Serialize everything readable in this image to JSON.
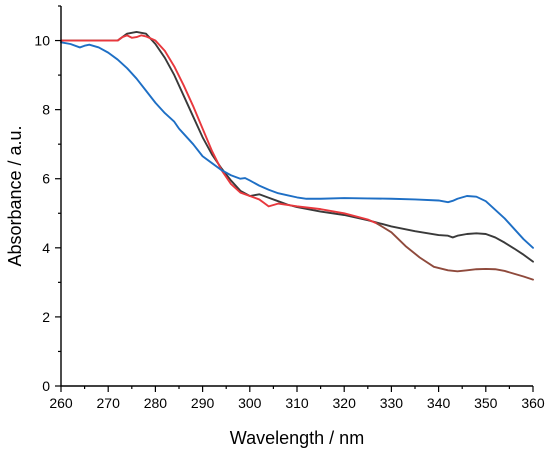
{
  "chart_data": {
    "type": "line",
    "xlabel": "Wavelength / nm",
    "ylabel": "Absorbance / a.u.",
    "xlim": [
      260,
      360
    ],
    "ylim": [
      0,
      11
    ],
    "xticks": [
      260,
      270,
      280,
      290,
      300,
      310,
      320,
      330,
      340,
      350,
      360
    ],
    "yticks": [
      0,
      2,
      4,
      6,
      8,
      10
    ],
    "grid": false,
    "series": [
      {
        "color": "#3a3a3a",
        "x": [
          260,
          272,
          274,
          276,
          278,
          280,
          282,
          284,
          286,
          288,
          290,
          292,
          294,
          296,
          298,
          300,
          302,
          304,
          306,
          308,
          310,
          315,
          320,
          325,
          330,
          335,
          340,
          342,
          343,
          344,
          346,
          348,
          350,
          352,
          354,
          356,
          358,
          360
        ],
        "y": [
          10.0,
          10.0,
          10.2,
          10.25,
          10.2,
          9.9,
          9.5,
          9.0,
          8.4,
          7.8,
          7.2,
          6.7,
          6.3,
          5.95,
          5.65,
          5.5,
          5.55,
          5.45,
          5.35,
          5.25,
          5.18,
          5.05,
          4.95,
          4.8,
          4.62,
          4.48,
          4.37,
          4.35,
          4.3,
          4.35,
          4.4,
          4.42,
          4.4,
          4.3,
          4.15,
          3.98,
          3.8,
          3.6
        ]
      },
      {
        "color": "#e8383d",
        "x": [
          260,
          272,
          273,
          274,
          275,
          276,
          277,
          278,
          280,
          282,
          284,
          286,
          288,
          290,
          292,
          294,
          296,
          298,
          300,
          302,
          303,
          304,
          306,
          308,
          310,
          315,
          320,
          325,
          327
        ],
        "y": [
          10.0,
          10.0,
          10.1,
          10.15,
          10.08,
          10.1,
          10.15,
          10.12,
          10.0,
          9.7,
          9.25,
          8.7,
          8.1,
          7.45,
          6.8,
          6.25,
          5.85,
          5.6,
          5.5,
          5.4,
          5.3,
          5.2,
          5.28,
          5.24,
          5.2,
          5.12,
          5.0,
          4.82,
          4.7
        ]
      },
      {
        "color": "#8f4a3c",
        "x": [
          327,
          330,
          333,
          336,
          339,
          342,
          344,
          346,
          348,
          350,
          352,
          354,
          356,
          358,
          360
        ],
        "y": [
          4.7,
          4.45,
          4.05,
          3.72,
          3.45,
          3.35,
          3.32,
          3.35,
          3.38,
          3.39,
          3.38,
          3.33,
          3.25,
          3.17,
          3.08
        ]
      },
      {
        "color": "#1e6fc5",
        "x": [
          260,
          262,
          264,
          265,
          266,
          268,
          270,
          272,
          274,
          276,
          278,
          280,
          282,
          284,
          285,
          286,
          288,
          290,
          292,
          294,
          296,
          298,
          299,
          300,
          302,
          304,
          306,
          308,
          310,
          312,
          315,
          320,
          325,
          330,
          335,
          340,
          342,
          343,
          344,
          346,
          348,
          350,
          352,
          354,
          356,
          358,
          360
        ],
        "y": [
          9.95,
          9.9,
          9.8,
          9.85,
          9.88,
          9.8,
          9.65,
          9.45,
          9.2,
          8.9,
          8.55,
          8.2,
          7.9,
          7.65,
          7.45,
          7.3,
          7.0,
          6.65,
          6.45,
          6.25,
          6.1,
          6.0,
          6.02,
          5.95,
          5.8,
          5.68,
          5.58,
          5.52,
          5.46,
          5.42,
          5.42,
          5.44,
          5.43,
          5.42,
          5.4,
          5.37,
          5.32,
          5.36,
          5.42,
          5.5,
          5.48,
          5.35,
          5.1,
          4.85,
          4.55,
          4.25,
          4.0
        ]
      }
    ]
  }
}
